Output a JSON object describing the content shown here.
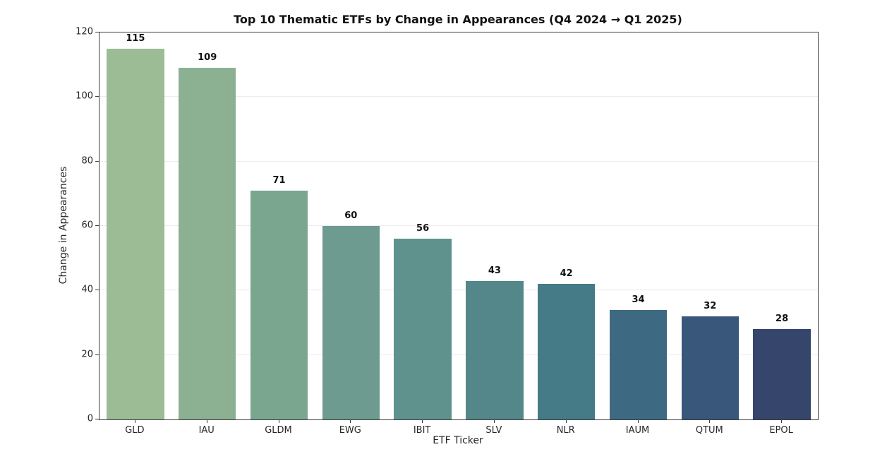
{
  "chart_data": {
    "type": "bar",
    "title": "Top 10 Thematic ETFs by Change in Appearances (Q4 2024 → Q1 2025)",
    "xlabel": "ETF Ticker",
    "ylabel": "Change in Appearances",
    "categories": [
      "GLD",
      "IAU",
      "GLDM",
      "EWG",
      "IBIT",
      "SLV",
      "NLR",
      "IAUM",
      "QTUM",
      "EPOL"
    ],
    "values": [
      115,
      109,
      71,
      60,
      56,
      43,
      42,
      34,
      32,
      28
    ],
    "bar_colors": [
      "#9cbc96",
      "#8bb092",
      "#7aa690",
      "#6d9b8f",
      "#5f928d",
      "#53878a",
      "#457a87",
      "#3d6a82",
      "#39567b",
      "#35456b"
    ],
    "value_labels": [
      "115",
      "109",
      "71",
      "60",
      "56",
      "43",
      "42",
      "34",
      "32",
      "28"
    ],
    "ylim": [
      0,
      120
    ],
    "yticks": [
      0,
      20,
      40,
      60,
      80,
      100,
      120
    ],
    "grid": "horizontal",
    "gridline_color": "#ececec",
    "spine_color": "#3c3c3c",
    "legend": "none",
    "background_color": "#ffffff"
  }
}
